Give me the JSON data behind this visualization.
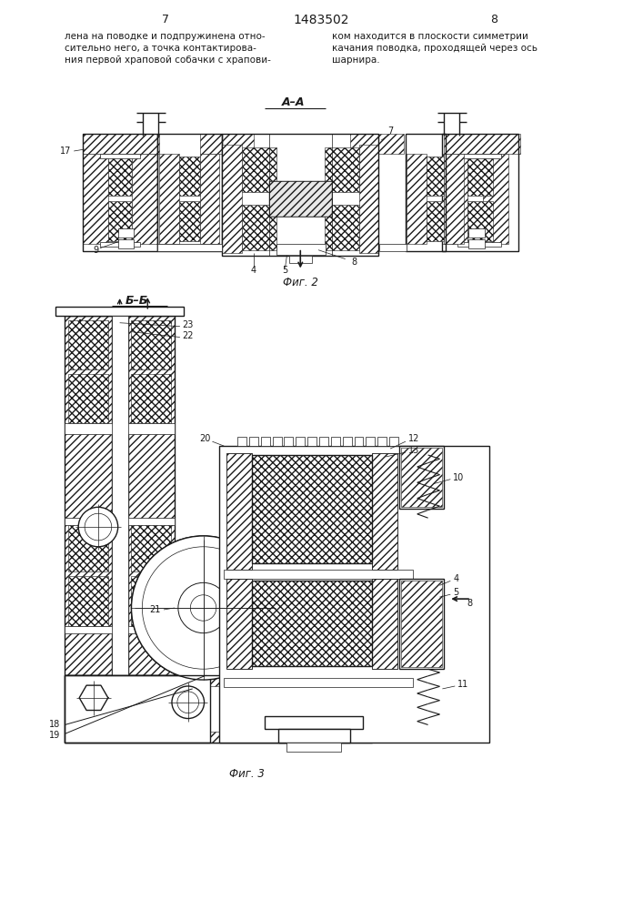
{
  "page_width": 7.07,
  "page_height": 10.0,
  "dpi": 100,
  "bg_color": "#ffffff",
  "line_color": "#1a1a1a",
  "header": {
    "left_num": "7",
    "center_title": "1483502",
    "right_num": "8"
  },
  "left_text": [
    "лена на поводке и подпружинена отно-",
    "сительно него, а точка контактирова-",
    "ния первой храповой собачки с храпови-"
  ],
  "right_text": [
    "ком находится в плоскости симметрии",
    "качания поводка, проходящей через ось",
    "шарнира."
  ],
  "fig2_label": "Фиг. 2",
  "fig3_label": "Фиг. 3",
  "section_aa": "A–A",
  "section_bb": "Б–Б"
}
